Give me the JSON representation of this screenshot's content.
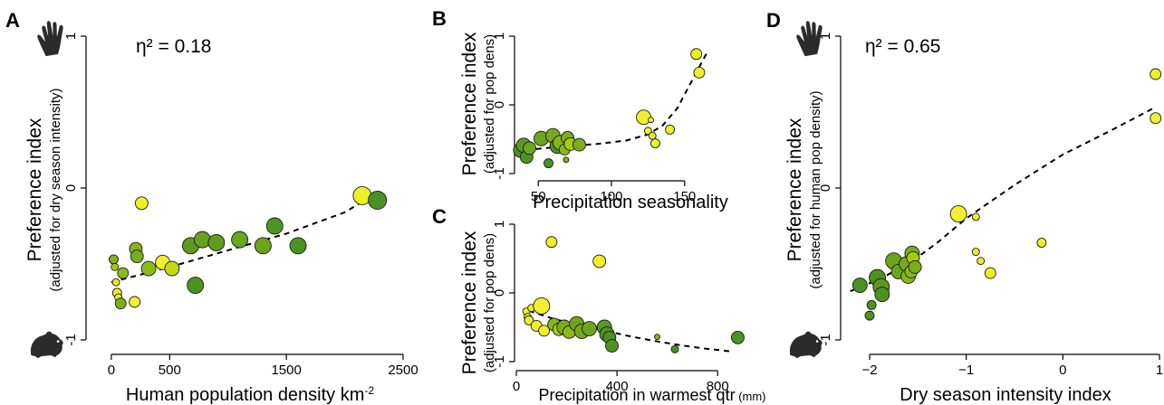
{
  "figure": {
    "panels": [
      {
        "id": "A",
        "letter": "A",
        "eta": "η² = 0.18",
        "xlabel": "Human population density km",
        "xlabel_sup": "-2",
        "xlabel_unit": "",
        "ylabel": "Preference index",
        "ysub": "(adjusted for dry season intensity)"
      },
      {
        "id": "B",
        "letter": "B",
        "eta": "",
        "xlabel": "Precipitation seasonality",
        "xlabel_sup": "",
        "xlabel_unit": "",
        "ylabel": "Preference index",
        "ysub": "(adjusted for pop dens)"
      },
      {
        "id": "C",
        "letter": "C",
        "eta": "",
        "xlabel": "Precipitation in warmest qtr",
        "xlabel_sup": "",
        "xlabel_unit": " (mm)",
        "ylabel": "Preference index",
        "ysub": "(adjusted for pop dens)"
      },
      {
        "id": "D",
        "letter": "D",
        "eta": "η² = 0.65",
        "xlabel": "Dry season intensity index",
        "xlabel_sup": "",
        "xlabel_unit": "",
        "ylabel": "Preference index",
        "ysub": "(adjusted for human pop density)"
      }
    ],
    "icons": {
      "top": "hand-icon",
      "bottom": "hamster-icon",
      "color": "#2b2b2b"
    }
  },
  "chart_data": [
    {
      "type": "scatter",
      "panel": "A",
      "xlim": [
        -100,
        2500
      ],
      "ylim": [
        -1,
        1
      ],
      "xticks": [
        0,
        500,
        1500,
        2500
      ],
      "yticks": [
        -1,
        0,
        1
      ],
      "xtick_labels": [
        "0",
        "500",
        "1500",
        "2500"
      ],
      "ytick_labels": [
        "-1",
        "0",
        "1"
      ],
      "trend": {
        "style": "dashed",
        "points": [
          [
            0,
            -0.62
          ],
          [
            500,
            -0.52
          ],
          [
            1000,
            -0.41
          ],
          [
            1500,
            -0.3
          ],
          [
            2000,
            -0.16
          ],
          [
            2300,
            -0.02
          ]
        ]
      },
      "points": [
        {
          "x": 20,
          "y": -0.47,
          "size": 5,
          "color": "#82b218"
        },
        {
          "x": 30,
          "y": -0.52,
          "size": 4,
          "color": "#a8cb10"
        },
        {
          "x": 40,
          "y": -0.62,
          "size": 4,
          "color": "#e8ea20"
        },
        {
          "x": 50,
          "y": -0.69,
          "size": 5,
          "color": "#eef026"
        },
        {
          "x": 60,
          "y": -0.72,
          "size": 4,
          "color": "#ecef2a"
        },
        {
          "x": 80,
          "y": -0.76,
          "size": 6,
          "color": "#7cae1a"
        },
        {
          "x": 100,
          "y": -0.56,
          "size": 6,
          "color": "#8dbb16"
        },
        {
          "x": 200,
          "y": -0.75,
          "size": 6,
          "color": "#eef030"
        },
        {
          "x": 210,
          "y": -0.4,
          "size": 7,
          "color": "#86b618"
        },
        {
          "x": 220,
          "y": -0.45,
          "size": 7,
          "color": "#7aad1c"
        },
        {
          "x": 260,
          "y": -0.1,
          "size": 7,
          "color": "#eef026"
        },
        {
          "x": 320,
          "y": -0.53,
          "size": 8,
          "color": "#8cba14"
        },
        {
          "x": 440,
          "y": -0.49,
          "size": 8,
          "color": "#f0f030"
        },
        {
          "x": 520,
          "y": -0.53,
          "size": 8,
          "color": "#c4d81a"
        },
        {
          "x": 680,
          "y": -0.38,
          "size": 9,
          "color": "#5a9b1e"
        },
        {
          "x": 720,
          "y": -0.64,
          "size": 9,
          "color": "#4d9320"
        },
        {
          "x": 780,
          "y": -0.34,
          "size": 9,
          "color": "#66a21e"
        },
        {
          "x": 900,
          "y": -0.36,
          "size": 9,
          "color": "#5c9c1e"
        },
        {
          "x": 1100,
          "y": -0.34,
          "size": 9,
          "color": "#6aa61e"
        },
        {
          "x": 1300,
          "y": -0.38,
          "size": 9,
          "color": "#6ba51c"
        },
        {
          "x": 1400,
          "y": -0.25,
          "size": 9,
          "color": "#4e9520"
        },
        {
          "x": 1600,
          "y": -0.38,
          "size": 9,
          "color": "#4a9222"
        },
        {
          "x": 2150,
          "y": -0.05,
          "size": 10,
          "color": "#eef026"
        },
        {
          "x": 2280,
          "y": -0.08,
          "size": 10,
          "color": "#4a9222"
        }
      ]
    },
    {
      "type": "scatter",
      "panel": "B",
      "xlim": [
        35,
        165
      ],
      "ylim": [
        -1,
        1
      ],
      "xticks": [
        50,
        100,
        150
      ],
      "yticks": [
        -1,
        0,
        1
      ],
      "xtick_labels": [
        "50",
        "100",
        "150"
      ],
      "ytick_labels": [
        "-1",
        "0",
        "1"
      ],
      "trend": {
        "style": "dashed",
        "points": [
          [
            35,
            -0.68
          ],
          [
            50,
            -0.64
          ],
          [
            70,
            -0.6
          ],
          [
            90,
            -0.57
          ],
          [
            110,
            -0.52
          ],
          [
            125,
            -0.43
          ],
          [
            135,
            -0.3
          ],
          [
            145,
            -0.05
          ],
          [
            155,
            0.35
          ],
          [
            165,
            0.75
          ]
        ]
      },
      "points": [
        {
          "x": 38,
          "y": -0.66,
          "size": 8,
          "color": "#4a9222"
        },
        {
          "x": 40,
          "y": -0.59,
          "size": 8,
          "color": "#5a9b1e"
        },
        {
          "x": 42,
          "y": -0.76,
          "size": 7,
          "color": "#4d9320"
        },
        {
          "x": 44,
          "y": -0.63,
          "size": 7,
          "color": "#6aa61e"
        },
        {
          "x": 52,
          "y": -0.49,
          "size": 8,
          "color": "#6ba51c"
        },
        {
          "x": 57,
          "y": -0.85,
          "size": 5,
          "color": "#4a9222"
        },
        {
          "x": 60,
          "y": -0.45,
          "size": 8,
          "color": "#76aa1c"
        },
        {
          "x": 63,
          "y": -0.6,
          "size": 8,
          "color": "#4d9320"
        },
        {
          "x": 65,
          "y": -0.55,
          "size": 8,
          "color": "#86b618"
        },
        {
          "x": 68,
          "y": -0.65,
          "size": 6,
          "color": "#8cba14"
        },
        {
          "x": 69,
          "y": -0.8,
          "size": 3,
          "color": "#82b218"
        },
        {
          "x": 70,
          "y": -0.48,
          "size": 7,
          "color": "#7aad1c"
        },
        {
          "x": 72,
          "y": -0.57,
          "size": 7,
          "color": "#a8cb10"
        },
        {
          "x": 78,
          "y": -0.58,
          "size": 7,
          "color": "#7cae1a"
        },
        {
          "x": 122,
          "y": -0.18,
          "size": 8,
          "color": "#eef026"
        },
        {
          "x": 125,
          "y": -0.38,
          "size": 4,
          "color": "#eef030"
        },
        {
          "x": 127,
          "y": -0.22,
          "size": 3,
          "color": "#ecef2a"
        },
        {
          "x": 128,
          "y": -0.45,
          "size": 4,
          "color": "#e8ea20"
        },
        {
          "x": 130,
          "y": -0.56,
          "size": 5,
          "color": "#eef026"
        },
        {
          "x": 140,
          "y": -0.36,
          "size": 5,
          "color": "#eef026"
        },
        {
          "x": 158,
          "y": 0.74,
          "size": 6,
          "color": "#eef026"
        },
        {
          "x": 160,
          "y": 0.47,
          "size": 6,
          "color": "#f0f030"
        }
      ]
    },
    {
      "type": "scatter",
      "panel": "C",
      "xlim": [
        0,
        900
      ],
      "ylim": [
        -1,
        1
      ],
      "xticks": [
        0,
        400,
        800
      ],
      "yticks": [
        -1,
        0,
        1
      ],
      "xtick_labels": [
        "0",
        "400",
        "800"
      ],
      "ytick_labels": [
        "-1",
        "0",
        "1"
      ],
      "trend": {
        "style": "dashed",
        "points": [
          [
            50,
            -0.26
          ],
          [
            150,
            -0.38
          ],
          [
            250,
            -0.47
          ],
          [
            350,
            -0.55
          ],
          [
            450,
            -0.63
          ],
          [
            550,
            -0.7
          ],
          [
            650,
            -0.76
          ],
          [
            750,
            -0.81
          ],
          [
            850,
            -0.85
          ]
        ]
      },
      "points": [
        {
          "x": 40,
          "y": -0.27,
          "size": 4,
          "color": "#eef030"
        },
        {
          "x": 45,
          "y": -0.35,
          "size": 4,
          "color": "#e8ea20"
        },
        {
          "x": 50,
          "y": -0.4,
          "size": 5,
          "color": "#ecef2a"
        },
        {
          "x": 60,
          "y": -0.22,
          "size": 4,
          "color": "#eef026"
        },
        {
          "x": 80,
          "y": -0.48,
          "size": 6,
          "color": "#eef026"
        },
        {
          "x": 100,
          "y": -0.19,
          "size": 9,
          "color": "#f0f030"
        },
        {
          "x": 110,
          "y": -0.55,
          "size": 6,
          "color": "#eef026"
        },
        {
          "x": 140,
          "y": 0.74,
          "size": 6,
          "color": "#eef026"
        },
        {
          "x": 150,
          "y": -0.46,
          "size": 7,
          "color": "#86b618"
        },
        {
          "x": 170,
          "y": -0.53,
          "size": 7,
          "color": "#a8cb10"
        },
        {
          "x": 190,
          "y": -0.5,
          "size": 8,
          "color": "#7aad1c"
        },
        {
          "x": 210,
          "y": -0.57,
          "size": 7,
          "color": "#8cba14"
        },
        {
          "x": 240,
          "y": -0.45,
          "size": 8,
          "color": "#6ba51c"
        },
        {
          "x": 260,
          "y": -0.56,
          "size": 8,
          "color": "#76aa1c"
        },
        {
          "x": 290,
          "y": -0.52,
          "size": 8,
          "color": "#6aa61e"
        },
        {
          "x": 330,
          "y": 0.46,
          "size": 7,
          "color": "#eef026"
        },
        {
          "x": 350,
          "y": -0.5,
          "size": 8,
          "color": "#5a9b1e"
        },
        {
          "x": 360,
          "y": -0.6,
          "size": 8,
          "color": "#4d9320"
        },
        {
          "x": 370,
          "y": -0.65,
          "size": 7,
          "color": "#4a9222"
        },
        {
          "x": 380,
          "y": -0.77,
          "size": 7,
          "color": "#4d9320"
        },
        {
          "x": 560,
          "y": -0.64,
          "size": 3,
          "color": "#82b218"
        },
        {
          "x": 630,
          "y": -0.82,
          "size": 4,
          "color": "#4a9222"
        },
        {
          "x": 880,
          "y": -0.65,
          "size": 7,
          "color": "#4a9222"
        }
      ]
    },
    {
      "type": "scatter",
      "panel": "D",
      "xlim": [
        -2.3,
        1
      ],
      "ylim": [
        -1,
        1
      ],
      "xticks": [
        -2,
        -1,
        0,
        1
      ],
      "yticks": [
        -1,
        0,
        1
      ],
      "xtick_labels": [
        "−2",
        "−1",
        "0",
        "1"
      ],
      "ytick_labels": [
        "-1",
        "0",
        "1"
      ],
      "trend": {
        "style": "dashed",
        "points": [
          [
            -2.2,
            -0.68
          ],
          [
            -1.9,
            -0.6
          ],
          [
            -1.6,
            -0.5
          ],
          [
            -1.3,
            -0.36
          ],
          [
            -1.0,
            -0.2
          ],
          [
            -0.5,
            0.02
          ],
          [
            0,
            0.22
          ],
          [
            0.5,
            0.38
          ],
          [
            0.95,
            0.53
          ]
        ]
      },
      "points": [
        {
          "x": -2.1,
          "y": -0.64,
          "size": 8,
          "color": "#4a9222"
        },
        {
          "x": -2.0,
          "y": -0.84,
          "size": 5,
          "color": "#4d9320"
        },
        {
          "x": -1.98,
          "y": -0.77,
          "size": 5,
          "color": "#4a9222"
        },
        {
          "x": -1.92,
          "y": -0.59,
          "size": 9,
          "color": "#4d9320"
        },
        {
          "x": -1.88,
          "y": -0.65,
          "size": 9,
          "color": "#5a9b1e"
        },
        {
          "x": -1.87,
          "y": -0.7,
          "size": 8,
          "color": "#4a9222"
        },
        {
          "x": -1.75,
          "y": -0.48,
          "size": 9,
          "color": "#6ba51c"
        },
        {
          "x": -1.7,
          "y": -0.55,
          "size": 8,
          "color": "#6aa61e"
        },
        {
          "x": -1.62,
          "y": -0.5,
          "size": 8,
          "color": "#76aa1c"
        },
        {
          "x": -1.6,
          "y": -0.58,
          "size": 8,
          "color": "#86b618"
        },
        {
          "x": -1.57,
          "y": -0.55,
          "size": 7,
          "color": "#8cba14"
        },
        {
          "x": -1.56,
          "y": -0.43,
          "size": 8,
          "color": "#7aad1c"
        },
        {
          "x": -1.55,
          "y": -0.46,
          "size": 7,
          "color": "#a8cb10"
        },
        {
          "x": -1.53,
          "y": -0.52,
          "size": 7,
          "color": "#7cae1a"
        },
        {
          "x": -1.08,
          "y": -0.17,
          "size": 9,
          "color": "#f0f030"
        },
        {
          "x": -0.9,
          "y": -0.19,
          "size": 4,
          "color": "#eef030"
        },
        {
          "x": -0.9,
          "y": -0.42,
          "size": 4,
          "color": "#e8ea20"
        },
        {
          "x": -0.85,
          "y": -0.48,
          "size": 4,
          "color": "#ecef2a"
        },
        {
          "x": -0.75,
          "y": -0.56,
          "size": 6,
          "color": "#eef026"
        },
        {
          "x": -0.22,
          "y": -0.36,
          "size": 5,
          "color": "#eef026"
        },
        {
          "x": 0.96,
          "y": 0.75,
          "size": 6,
          "color": "#eef026"
        },
        {
          "x": 0.96,
          "y": 0.46,
          "size": 6,
          "color": "#f0f030"
        }
      ]
    }
  ]
}
